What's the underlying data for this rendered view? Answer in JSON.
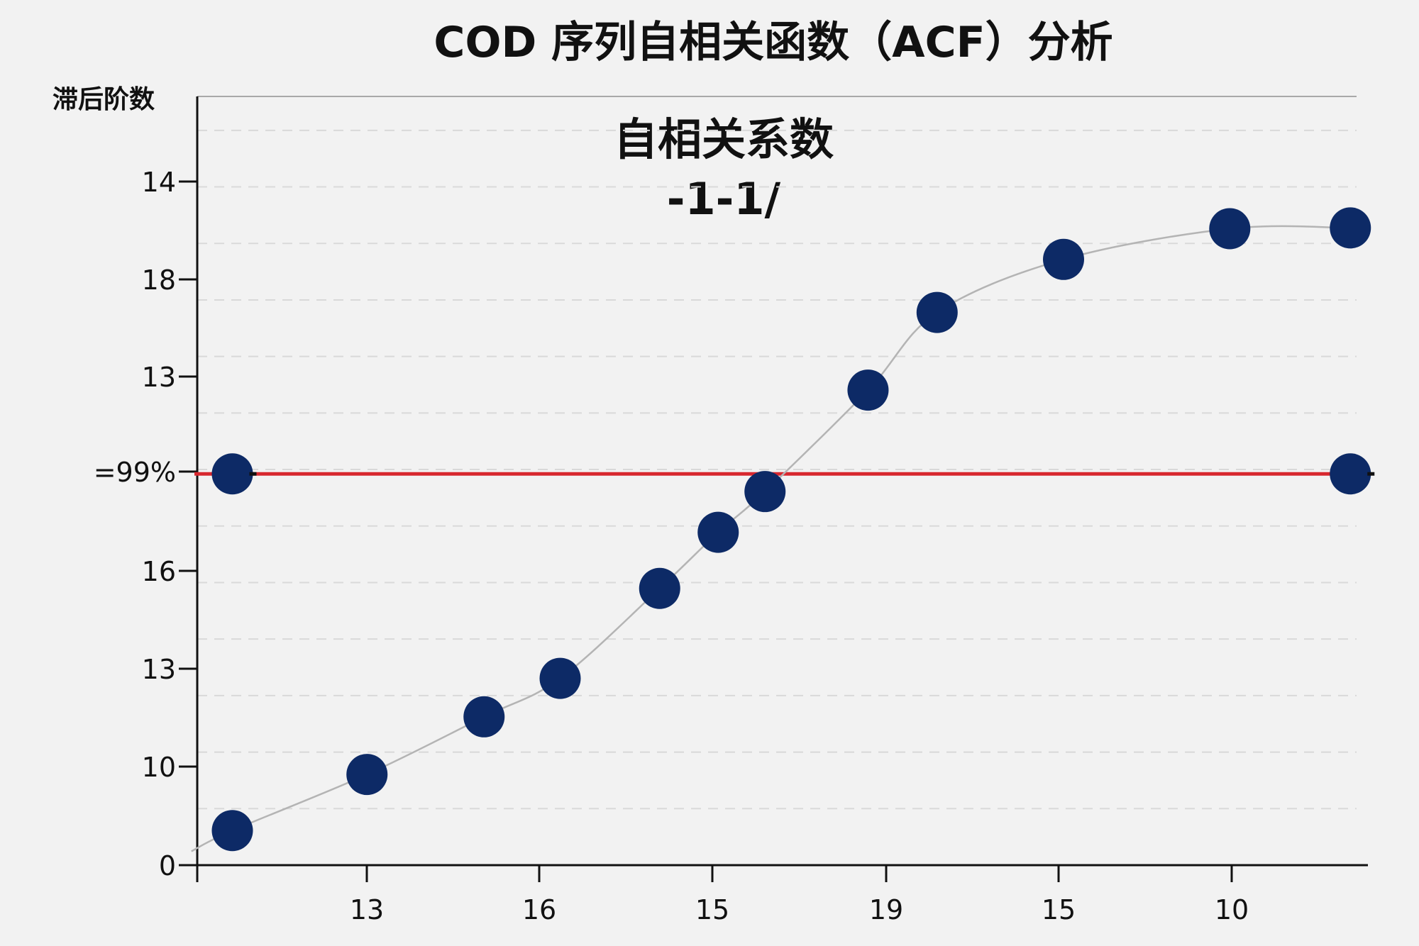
{
  "chart_data": {
    "type": "scatter",
    "title": "COD 序列自相关函数（ACF）分析",
    "ylabel": "滞后阶数",
    "annotation": {
      "line1": "自相关系数",
      "line2": "-1-1/"
    },
    "y_tick_labels": [
      "14",
      "18",
      "13",
      "=99%",
      "16",
      "13",
      "10",
      "0"
    ],
    "x_tick_labels": [
      "13",
      "16",
      "15",
      "19",
      "15",
      "10"
    ],
    "grid": true,
    "reference_line": {
      "color": "#d8282f"
    },
    "series": [
      {
        "marker_color": "#0d2a66",
        "curve_color": "#b4b4b4",
        "points": [
          {
            "x": 0.03,
            "y": 0.045
          },
          {
            "x": 0.145,
            "y": 0.118
          },
          {
            "x": 0.245,
            "y": 0.193
          },
          {
            "x": 0.31,
            "y": 0.243
          },
          {
            "x": 0.395,
            "y": 0.36
          },
          {
            "x": 0.445,
            "y": 0.433
          },
          {
            "x": 0.485,
            "y": 0.486
          },
          {
            "x": 0.573,
            "y": 0.618
          },
          {
            "x": 0.632,
            "y": 0.719
          },
          {
            "x": 0.74,
            "y": 0.788
          },
          {
            "x": 0.882,
            "y": 0.828
          },
          {
            "x": 0.985,
            "y": 0.829
          }
        ]
      }
    ],
    "reference_markers": [
      {
        "x": 0.03,
        "y": 0.509
      },
      {
        "x": 0.985,
        "y": 0.509
      }
    ]
  }
}
